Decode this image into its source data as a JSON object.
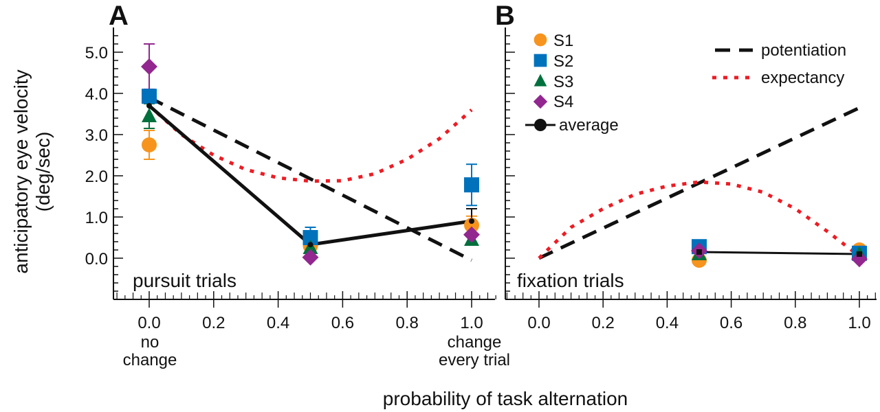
{
  "chart_data": [
    {
      "type": "scatter",
      "panel_label": "A",
      "annotation": "pursuit trials",
      "xlim": [
        -0.1,
        1.05
      ],
      "ylim": [
        -1.0,
        5.5
      ],
      "xticks": [
        "0.0",
        "0.2",
        "0.4",
        "0.6",
        "0.8",
        "1.0"
      ],
      "yticks": [
        "0.0",
        "1.0",
        "2.0",
        "3.0",
        "4.0",
        "5.0"
      ],
      "xtick_notes": {
        "0.0": [
          "no",
          "change"
        ],
        "1.0": [
          "change",
          "every trial"
        ]
      },
      "series": [
        {
          "name": "S1",
          "marker": "circle",
          "color": "#f7941d",
          "x": [
            0,
            0.5,
            1
          ],
          "y": [
            2.75,
            0.3,
            0.8
          ],
          "err": [
            0.35,
            null,
            0.22
          ]
        },
        {
          "name": "S2",
          "marker": "square",
          "color": "#0072bc",
          "x": [
            0,
            0.5,
            1
          ],
          "y": [
            3.93,
            0.5,
            1.78
          ],
          "err": [
            0.12,
            0.25,
            0.5
          ]
        },
        {
          "name": "S3",
          "marker": "triangle",
          "color": "#00703c",
          "x": [
            0,
            0.5,
            1
          ],
          "y": [
            3.45,
            0.25,
            0.45
          ],
          "err": [
            0.3,
            null,
            null
          ]
        },
        {
          "name": "S4",
          "marker": "diamond",
          "color": "#92278f",
          "x": [
            0,
            0.5,
            1
          ],
          "y": [
            4.65,
            0.02,
            0.57
          ],
          "err": [
            0.55,
            null,
            null
          ]
        },
        {
          "name": "average",
          "marker": "dot",
          "color": "#111111",
          "x": [
            0,
            0.5,
            1
          ],
          "y": [
            3.7,
            0.33,
            0.9
          ],
          "err": [
            null,
            null,
            0.3
          ]
        }
      ],
      "models": [
        {
          "name": "potentiation",
          "style": "dashed",
          "color": "#111111",
          "x": [
            0,
            1
          ],
          "y": [
            3.9,
            -0.05
          ]
        },
        {
          "name": "expectancy",
          "style": "dotted",
          "color": "#ed1c24",
          "x": [
            0,
            0.1,
            0.2,
            0.3,
            0.4,
            0.5,
            0.6,
            0.7,
            0.8,
            0.9,
            1.0
          ],
          "y": [
            3.7,
            3.0,
            2.5,
            2.15,
            1.95,
            1.87,
            1.88,
            2.05,
            2.4,
            2.9,
            3.6
          ]
        }
      ]
    },
    {
      "type": "scatter",
      "panel_label": "B",
      "annotation": "fixation trials",
      "xlim": [
        -0.1,
        1.05
      ],
      "ylim": [
        -1.0,
        5.5
      ],
      "xticks": [
        "0.0",
        "0.2",
        "0.4",
        "0.6",
        "0.8",
        "1.0"
      ],
      "series": [
        {
          "name": "S1",
          "marker": "circle",
          "color": "#f7941d",
          "x": [
            0.5,
            1
          ],
          "y": [
            -0.05,
            0.2
          ]
        },
        {
          "name": "S2",
          "marker": "square",
          "color": "#0072bc",
          "x": [
            0.5,
            1
          ],
          "y": [
            0.28,
            0.12
          ]
        },
        {
          "name": "S3",
          "marker": "triangle",
          "color": "#00703c",
          "x": [
            0.5,
            1
          ],
          "y": [
            0.1,
            0.1
          ]
        },
        {
          "name": "S4",
          "marker": "diamond",
          "color": "#92278f",
          "x": [
            0.5,
            1
          ],
          "y": [
            0.18,
            -0.02
          ]
        },
        {
          "name": "average",
          "marker": "sqdot",
          "color": "#111111",
          "x": [
            0.5,
            1
          ],
          "y": [
            0.15,
            0.1
          ]
        }
      ],
      "models": [
        {
          "name": "potentiation",
          "style": "dashed",
          "color": "#111111",
          "x": [
            0,
            1
          ],
          "y": [
            0,
            3.65
          ]
        },
        {
          "name": "expectancy",
          "style": "dotted",
          "color": "#ed1c24",
          "x": [
            0,
            0.1,
            0.2,
            0.3,
            0.4,
            0.5,
            0.6,
            0.7,
            0.8,
            0.9,
            1.0
          ],
          "y": [
            0,
            0.75,
            1.2,
            1.55,
            1.75,
            1.85,
            1.8,
            1.6,
            1.2,
            0.65,
            0.05
          ]
        }
      ]
    }
  ],
  "ylabel": [
    "anticipatory eye velocity",
    "(deg/sec)"
  ],
  "xlabel": "probability of task alternation",
  "legend": {
    "subjects": [
      "S1",
      "S2",
      "S3",
      "S4",
      "average"
    ],
    "models": [
      "potentiation",
      "expectancy"
    ]
  }
}
